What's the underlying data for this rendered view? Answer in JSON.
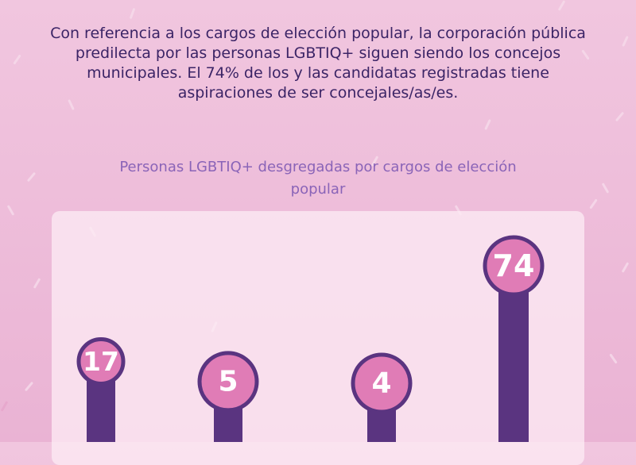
{
  "intro_text": "Con referencia a los cargos de elección popular, la corporación pública predilecta por las personas LGBTIQ+ siguen siendo los concejos municipales. El 74% de los y las candidatas registradas tiene aspiraciones de ser concejales/as/es.",
  "chart_data": {
    "type": "bar",
    "title": "Personas LGBTIQ+ desgregadas por cargos de elección popular",
    "values": [
      17,
      5,
      4,
      74
    ],
    "data_labels": [
      "17",
      "5",
      "4",
      "74"
    ],
    "units": "%",
    "ylim": [
      0,
      100
    ],
    "colors": {
      "bar": "#5a3480",
      "marker_fill": "#e07cb6",
      "marker_border": "#5a3480",
      "label": "#ffffff"
    }
  }
}
